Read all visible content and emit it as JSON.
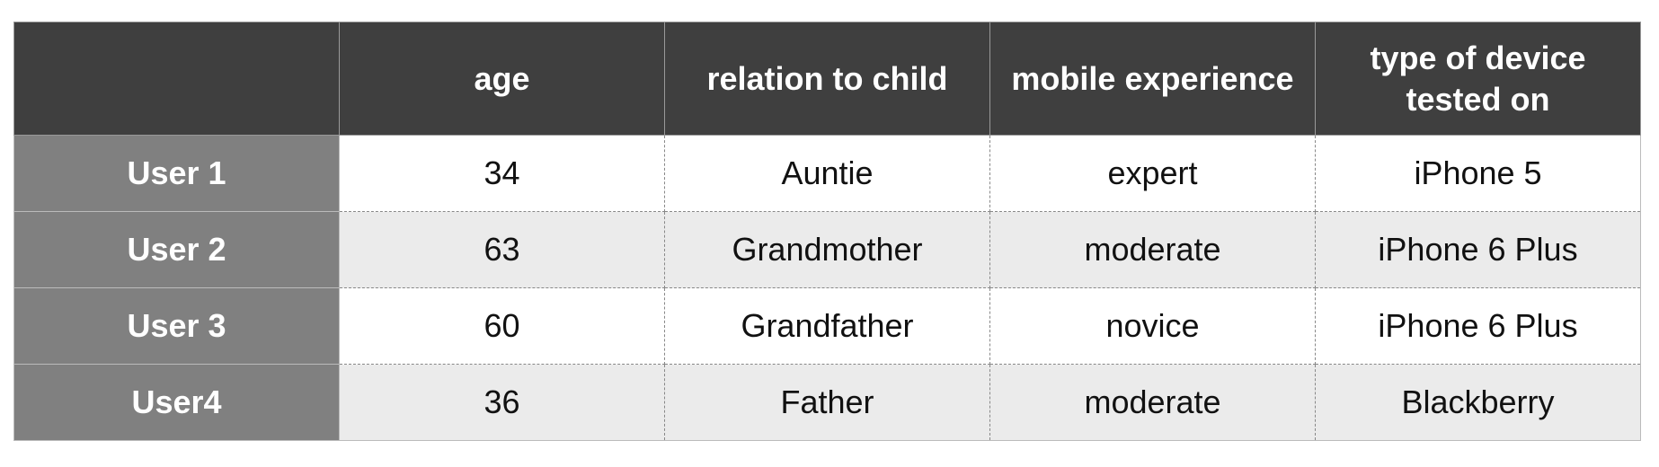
{
  "table": {
    "header": [
      "age",
      "relation to child",
      "mobile experience",
      "type of device tested on"
    ],
    "rows": [
      {
        "label": "User 1",
        "cells": [
          34,
          "Auntie",
          "expert",
          "iPhone 5"
        ]
      },
      {
        "label": "User 2",
        "cells": [
          63,
          "Grandmother",
          "moderate",
          "iPhone 6 Plus"
        ]
      },
      {
        "label": "User 3",
        "cells": [
          60,
          "Grandfather",
          "novice",
          "iPhone 6 Plus"
        ]
      },
      {
        "label": "User4",
        "cells": [
          36,
          "Father",
          "moderate",
          "Blackberry"
        ]
      }
    ]
  }
}
